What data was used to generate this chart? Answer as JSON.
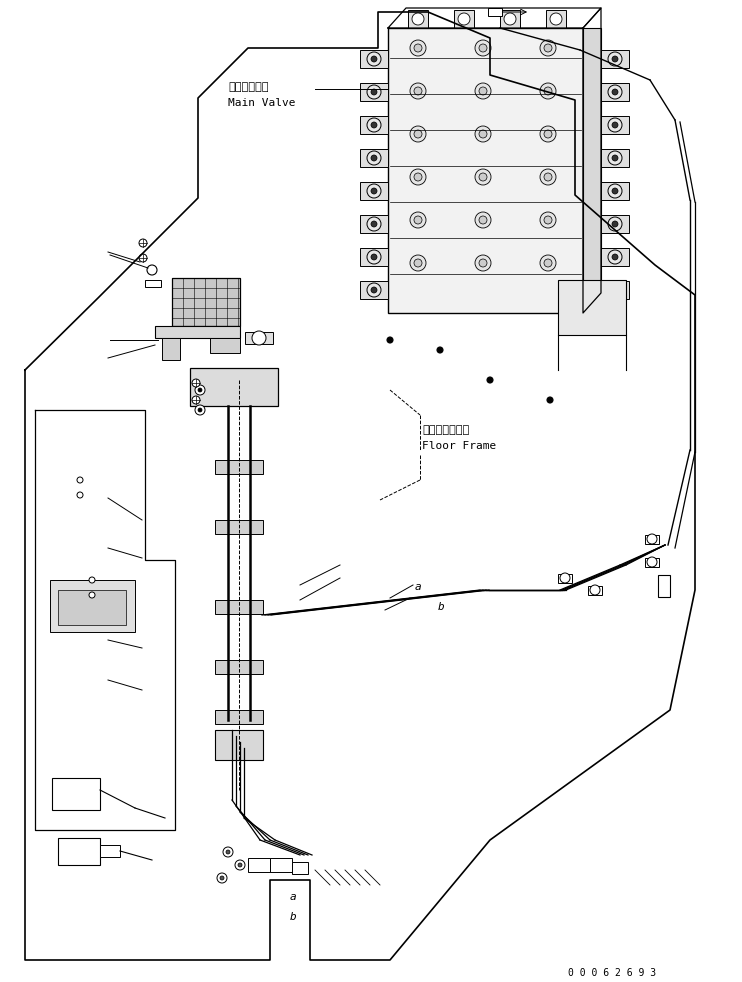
{
  "bg_color": "#ffffff",
  "line_color": "#000000",
  "fig_width": 7.42,
  "fig_height": 9.82,
  "dpi": 100,
  "serial_number": "0 0 0 6 2 6 9 3",
  "labels": {
    "main_valve_jp": "メインバルブ",
    "main_valve_en": "Main Valve",
    "floor_frame_jp": "フロアフレーム",
    "floor_frame_en": "Floor Frame",
    "label_a": "a",
    "label_b": "b"
  }
}
